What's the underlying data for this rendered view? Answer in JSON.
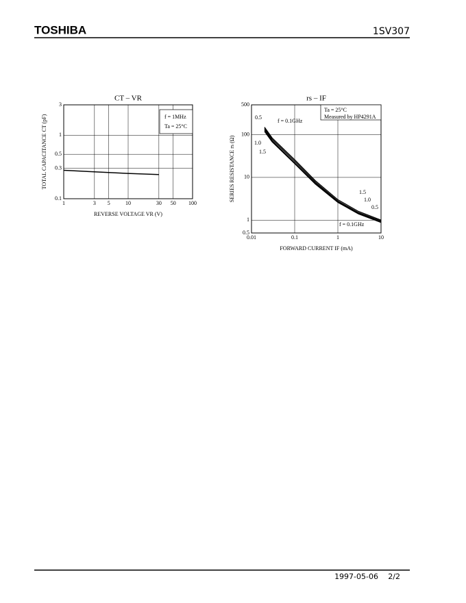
{
  "header": {
    "brand": "TOSHIBA",
    "part": "1SV307"
  },
  "chart_data": [
    {
      "type": "line",
      "title": "CT – VR",
      "x_label": "REVERSE VOLTAGE  VR  (V)",
      "y_label": "TOTAL CAPACITANCE  CT  (pF)",
      "xlog": true,
      "ylog": true,
      "grid": true,
      "xlim": [
        1,
        100
      ],
      "xticks": [
        1,
        3,
        5,
        10,
        30,
        50,
        100
      ],
      "ylim": [
        0.1,
        3
      ],
      "yticks": [
        0.1,
        0.3,
        0.5,
        1,
        3
      ],
      "annotations": [
        "f = 1MHz",
        "Ta = 25°C"
      ],
      "x": [
        1,
        3,
        10,
        30
      ],
      "series": [
        {
          "name": null,
          "color": "#000000",
          "values": [
            0.28,
            0.265,
            0.25,
            0.24
          ]
        }
      ]
    },
    {
      "type": "line",
      "title": "rs – IF",
      "x_label": "FORWARD CURRENT  IF  (mA)",
      "y_label": "SERIES RESISTANCE  rs  (Ω)",
      "xlog": true,
      "ylog": true,
      "grid": true,
      "xlim": [
        0.01,
        10
      ],
      "xticks": [
        0.01,
        0.1,
        1,
        10
      ],
      "ylim": [
        0.5,
        500
      ],
      "yticks": [
        0.5,
        1,
        10,
        100,
        500
      ],
      "annotations": [
        "Ta = 25°C",
        "Measured by HP4291A",
        "1.5",
        "1.0",
        "0.5",
        "f = 0.1GHz"
      ],
      "x": [
        0.02,
        0.03,
        0.1,
        0.3,
        1,
        3,
        10
      ],
      "series": [
        {
          "name": "0.5",
          "color": "#000000",
          "values": [
            140,
            78,
            24,
            7.8,
            2.8,
            1.5,
            0.95
          ]
        },
        {
          "name": "f = 0.1GHz",
          "color": "#000000",
          "values": [
            150,
            84,
            26,
            8.4,
            3.0,
            1.6,
            1.0
          ]
        },
        {
          "name": "1.0",
          "color": "#000000",
          "values": [
            130,
            72,
            22,
            7.3,
            2.7,
            1.45,
            0.9
          ]
        },
        {
          "name": "1.5",
          "color": "#000000",
          "values": [
            120,
            68,
            21,
            7.0,
            2.6,
            1.4,
            0.88
          ]
        }
      ]
    }
  ],
  "footer": {
    "date": "1997-05-06",
    "page": "2/2"
  }
}
